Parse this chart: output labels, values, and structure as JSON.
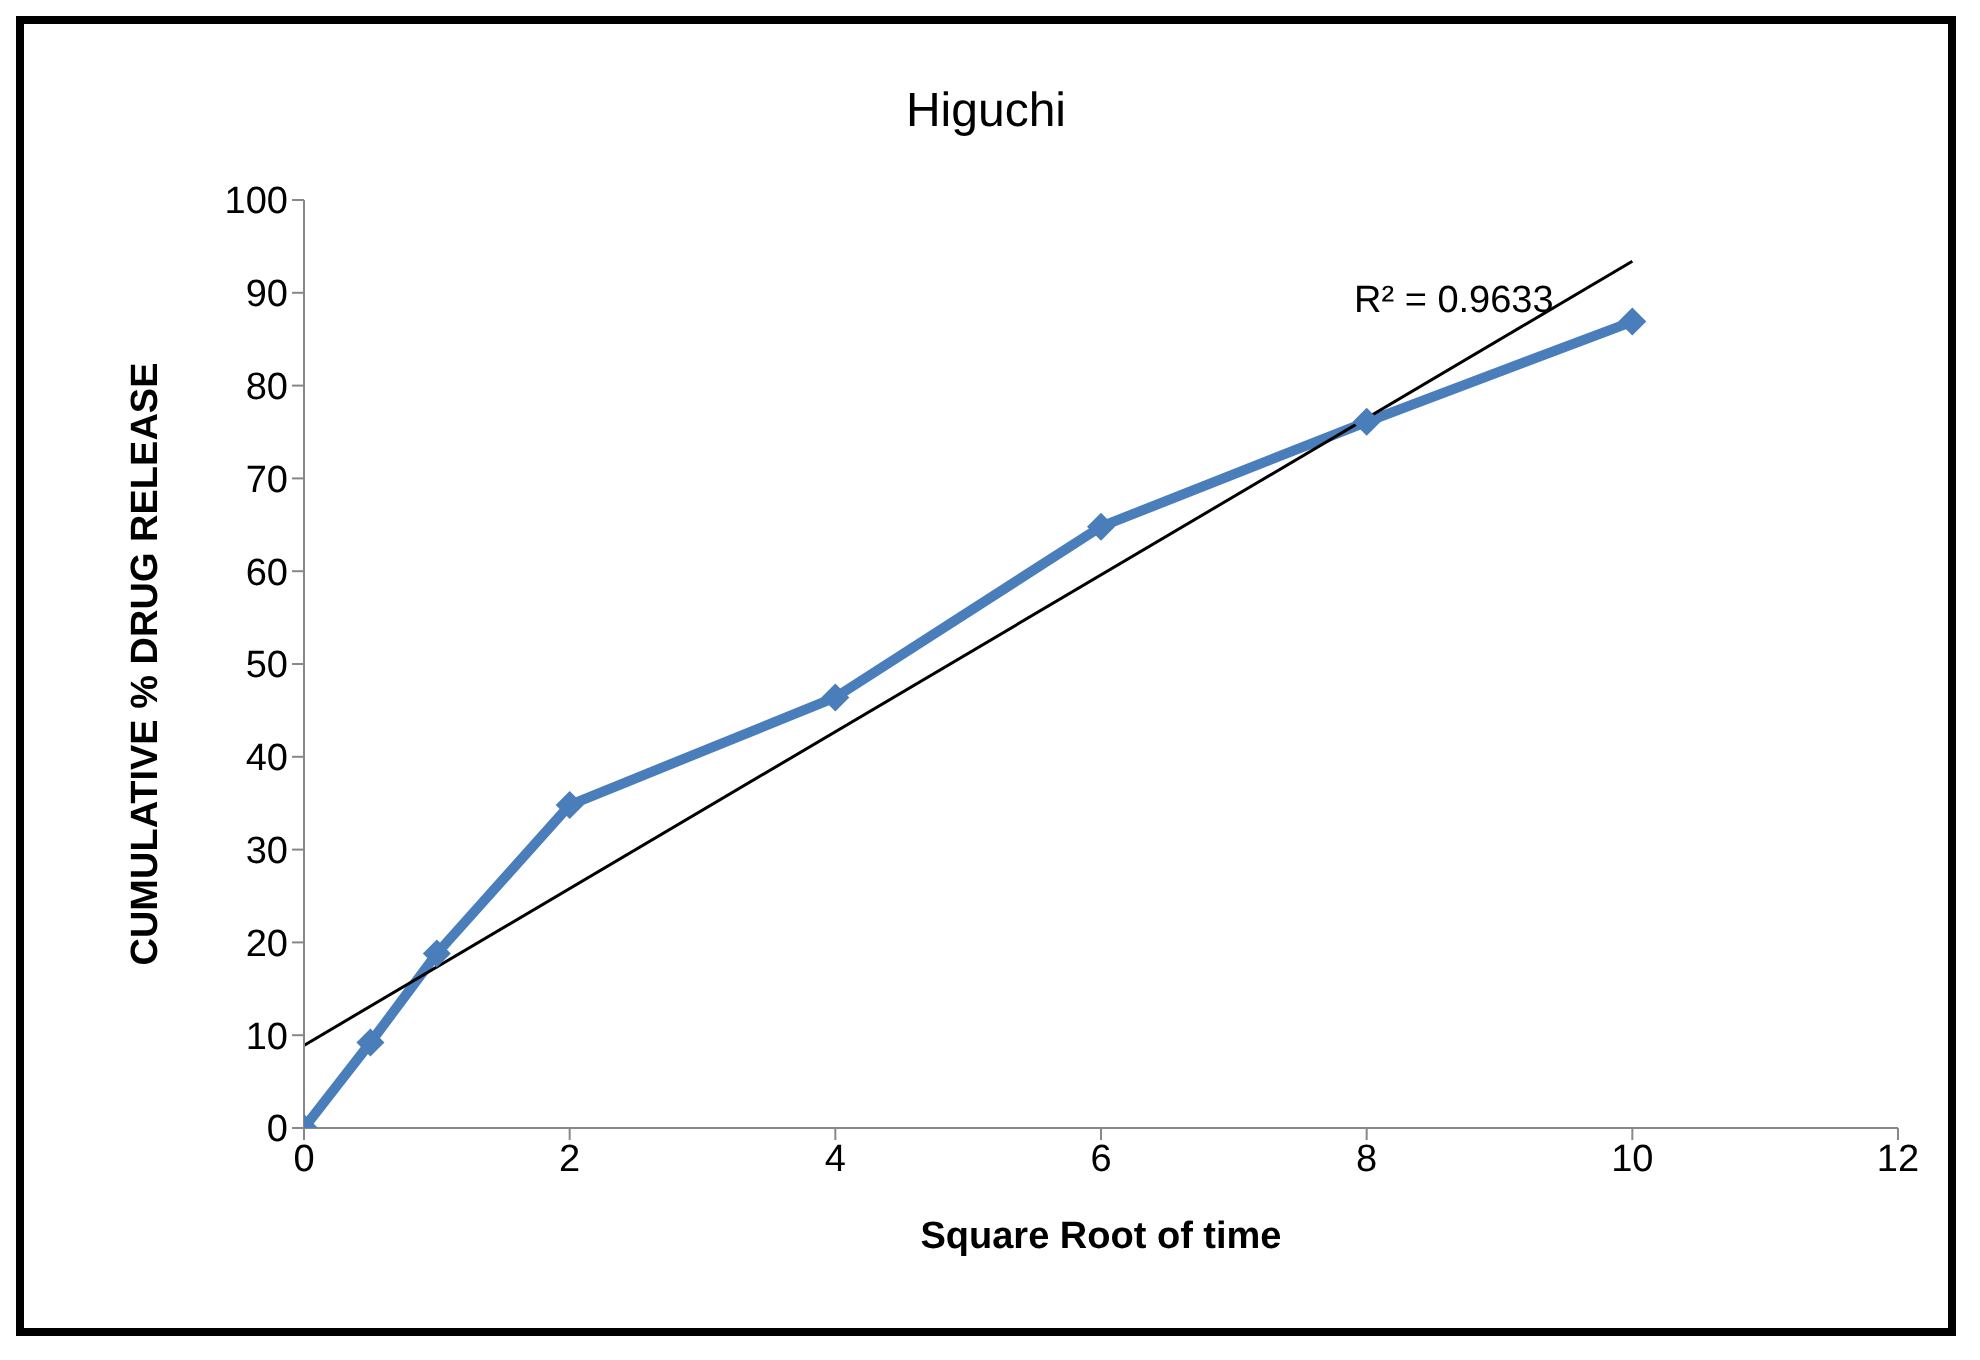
{
  "chart_data": {
    "type": "line",
    "title": "Higuchi",
    "xlabel": "Square Root of time",
    "ylabel": "CUMULATIVE  % DRUG RELEASE",
    "x": [
      0,
      0.5,
      1,
      2,
      4,
      6,
      8,
      10
    ],
    "series": [
      {
        "color": "#4a7ebb",
        "values": [
          0,
          9.2,
          18.8,
          34.8,
          46.4,
          64.8,
          76.1,
          86.9
        ]
      },
      {
        "type": "line",
        "color": "#000000",
        "x": [
          0,
          10
        ],
        "values": [
          8.9,
          93.4
        ],
        "marker": "none"
      }
    ],
    "annotations": [
      "R² = 0.9633"
    ],
    "xlim": [
      0,
      12
    ],
    "xticks": [
      0,
      2,
      4,
      6,
      8,
      10,
      12
    ],
    "ylim": [
      0,
      100
    ],
    "yticks": [
      0,
      10,
      20,
      30,
      40,
      50,
      60,
      70,
      80,
      90,
      100
    ],
    "grid": false,
    "legend": false,
    "marker": "diamond",
    "line_style": "solid"
  }
}
